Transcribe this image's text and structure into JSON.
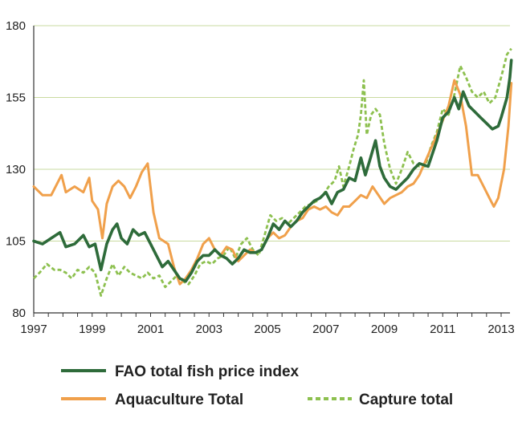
{
  "chart_data": {
    "type": "line",
    "title": "",
    "xlabel": "",
    "ylabel": "",
    "xlim": [
      1997,
      2013.4
    ],
    "ylim": [
      80,
      180
    ],
    "grid": "horizontal",
    "x_ticks": [
      1997,
      1999,
      2001,
      2003,
      2005,
      2007,
      2009,
      2011,
      2013
    ],
    "y_ticks": [
      80,
      105,
      130,
      155,
      180
    ],
    "legend_position": "bottom",
    "series": [
      {
        "name": "FAO total fish price index",
        "color": "#2e6b3a",
        "style": "solid",
        "points": [
          [
            1997.0,
            105
          ],
          [
            1997.3,
            104
          ],
          [
            1997.6,
            106
          ],
          [
            1997.9,
            108
          ],
          [
            1998.1,
            103
          ],
          [
            1998.4,
            104
          ],
          [
            1998.7,
            107
          ],
          [
            1998.9,
            103
          ],
          [
            1999.1,
            104
          ],
          [
            1999.3,
            95
          ],
          [
            1999.5,
            104
          ],
          [
            1999.7,
            109
          ],
          [
            1999.85,
            111
          ],
          [
            2000.0,
            106
          ],
          [
            2000.2,
            104
          ],
          [
            2000.4,
            109
          ],
          [
            2000.6,
            107
          ],
          [
            2000.8,
            108
          ],
          [
            2001.0,
            104
          ],
          [
            2001.2,
            100
          ],
          [
            2001.4,
            96
          ],
          [
            2001.6,
            98
          ],
          [
            2001.8,
            95
          ],
          [
            2002.0,
            92
          ],
          [
            2002.2,
            91
          ],
          [
            2002.4,
            94
          ],
          [
            2002.6,
            98
          ],
          [
            2002.8,
            100
          ],
          [
            2003.0,
            100
          ],
          [
            2003.2,
            102
          ],
          [
            2003.4,
            100
          ],
          [
            2003.6,
            99
          ],
          [
            2003.8,
            97
          ],
          [
            2004.0,
            99
          ],
          [
            2004.2,
            102
          ],
          [
            2004.4,
            101
          ],
          [
            2004.6,
            101
          ],
          [
            2004.8,
            102
          ],
          [
            2005.0,
            106
          ],
          [
            2005.2,
            111
          ],
          [
            2005.4,
            109
          ],
          [
            2005.6,
            112
          ],
          [
            2005.8,
            110
          ],
          [
            2006.0,
            112
          ],
          [
            2006.2,
            115
          ],
          [
            2006.4,
            117
          ],
          [
            2006.6,
            119
          ],
          [
            2006.8,
            120
          ],
          [
            2007.0,
            122
          ],
          [
            2007.2,
            118
          ],
          [
            2007.4,
            122
          ],
          [
            2007.6,
            123
          ],
          [
            2007.8,
            127
          ],
          [
            2008.0,
            126
          ],
          [
            2008.2,
            134
          ],
          [
            2008.35,
            128
          ],
          [
            2008.5,
            133
          ],
          [
            2008.7,
            140
          ],
          [
            2008.85,
            131
          ],
          [
            2009.0,
            127
          ],
          [
            2009.2,
            124
          ],
          [
            2009.4,
            123
          ],
          [
            2009.6,
            125
          ],
          [
            2009.8,
            127
          ],
          [
            2010.0,
            130
          ],
          [
            2010.2,
            132
          ],
          [
            2010.5,
            131
          ],
          [
            2010.8,
            140
          ],
          [
            2011.0,
            148
          ],
          [
            2011.2,
            150
          ],
          [
            2011.4,
            155
          ],
          [
            2011.55,
            151
          ],
          [
            2011.7,
            157
          ],
          [
            2011.9,
            152
          ],
          [
            2012.1,
            150
          ],
          [
            2012.3,
            148
          ],
          [
            2012.5,
            146
          ],
          [
            2012.7,
            144
          ],
          [
            2012.9,
            145
          ],
          [
            2013.0,
            148
          ],
          [
            2013.2,
            155
          ],
          [
            2013.3,
            162
          ],
          [
            2013.35,
            168
          ]
        ]
      },
      {
        "name": "Aquaculture Total",
        "color": "#f0a04b",
        "style": "solid",
        "points": [
          [
            1997.0,
            124
          ],
          [
            1997.3,
            121
          ],
          [
            1997.6,
            121
          ],
          [
            1997.8,
            125
          ],
          [
            1997.95,
            128
          ],
          [
            1998.1,
            122
          ],
          [
            1998.4,
            124
          ],
          [
            1998.7,
            122
          ],
          [
            1998.9,
            127
          ],
          [
            1999.0,
            119
          ],
          [
            1999.2,
            116
          ],
          [
            1999.35,
            106
          ],
          [
            1999.5,
            118
          ],
          [
            1999.7,
            124
          ],
          [
            1999.9,
            126
          ],
          [
            2000.1,
            124
          ],
          [
            2000.3,
            120
          ],
          [
            2000.5,
            124
          ],
          [
            2000.7,
            129
          ],
          [
            2000.9,
            132
          ],
          [
            2001.1,
            115
          ],
          [
            2001.3,
            106
          ],
          [
            2001.6,
            104
          ],
          [
            2001.8,
            96
          ],
          [
            2002.0,
            90
          ],
          [
            2002.2,
            92
          ],
          [
            2002.4,
            95
          ],
          [
            2002.6,
            99
          ],
          [
            2002.8,
            104
          ],
          [
            2003.0,
            106
          ],
          [
            2003.2,
            102
          ],
          [
            2003.4,
            100
          ],
          [
            2003.6,
            103
          ],
          [
            2003.8,
            102
          ],
          [
            2004.0,
            98
          ],
          [
            2004.2,
            100
          ],
          [
            2004.4,
            102
          ],
          [
            2004.6,
            101
          ],
          [
            2004.8,
            102
          ],
          [
            2005.0,
            106
          ],
          [
            2005.2,
            108
          ],
          [
            2005.4,
            106
          ],
          [
            2005.6,
            107
          ],
          [
            2005.8,
            110
          ],
          [
            2006.0,
            112
          ],
          [
            2006.2,
            113
          ],
          [
            2006.4,
            116
          ],
          [
            2006.6,
            117
          ],
          [
            2006.8,
            116
          ],
          [
            2007.0,
            117
          ],
          [
            2007.2,
            115
          ],
          [
            2007.4,
            114
          ],
          [
            2007.6,
            117
          ],
          [
            2007.8,
            117
          ],
          [
            2008.0,
            119
          ],
          [
            2008.2,
            121
          ],
          [
            2008.4,
            120
          ],
          [
            2008.6,
            124
          ],
          [
            2008.8,
            121
          ],
          [
            2009.0,
            118
          ],
          [
            2009.2,
            120
          ],
          [
            2009.4,
            121
          ],
          [
            2009.6,
            122
          ],
          [
            2009.8,
            124
          ],
          [
            2010.0,
            125
          ],
          [
            2010.2,
            128
          ],
          [
            2010.5,
            135
          ],
          [
            2010.8,
            142
          ],
          [
            2011.0,
            147
          ],
          [
            2011.2,
            152
          ],
          [
            2011.4,
            161
          ],
          [
            2011.6,
            156
          ],
          [
            2011.8,
            145
          ],
          [
            2012.0,
            128
          ],
          [
            2012.2,
            128
          ],
          [
            2012.4,
            124
          ],
          [
            2012.6,
            120
          ],
          [
            2012.75,
            117
          ],
          [
            2012.9,
            120
          ],
          [
            2013.1,
            130
          ],
          [
            2013.25,
            145
          ],
          [
            2013.35,
            160
          ]
        ]
      },
      {
        "name": "Capture total",
        "color": "#8dc04f",
        "style": "dashed",
        "points": [
          [
            1997.0,
            92
          ],
          [
            1997.2,
            94
          ],
          [
            1997.45,
            97
          ],
          [
            1997.7,
            95
          ],
          [
            1997.9,
            95
          ],
          [
            1998.1,
            94
          ],
          [
            1998.3,
            92
          ],
          [
            1998.5,
            95
          ],
          [
            1998.7,
            94
          ],
          [
            1998.9,
            96
          ],
          [
            1999.1,
            94
          ],
          [
            1999.3,
            86
          ],
          [
            1999.5,
            92
          ],
          [
            1999.7,
            97
          ],
          [
            1999.9,
            93
          ],
          [
            2000.1,
            96
          ],
          [
            2000.3,
            94
          ],
          [
            2000.5,
            93
          ],
          [
            2000.7,
            92
          ],
          [
            2000.9,
            94
          ],
          [
            2001.1,
            92
          ],
          [
            2001.3,
            93
          ],
          [
            2001.5,
            89
          ],
          [
            2001.7,
            91
          ],
          [
            2001.9,
            93
          ],
          [
            2002.1,
            91
          ],
          [
            2002.3,
            90
          ],
          [
            2002.5,
            93
          ],
          [
            2002.7,
            97
          ],
          [
            2002.9,
            98
          ],
          [
            2003.1,
            97
          ],
          [
            2003.3,
            99
          ],
          [
            2003.5,
            100
          ],
          [
            2003.7,
            103
          ],
          [
            2003.9,
            99
          ],
          [
            2004.1,
            104
          ],
          [
            2004.3,
            106
          ],
          [
            2004.5,
            102
          ],
          [
            2004.7,
            100
          ],
          [
            2004.9,
            107
          ],
          [
            2005.1,
            114
          ],
          [
            2005.3,
            112
          ],
          [
            2005.5,
            113
          ],
          [
            2005.7,
            111
          ],
          [
            2005.9,
            113
          ],
          [
            2006.1,
            115
          ],
          [
            2006.3,
            117
          ],
          [
            2006.5,
            118
          ],
          [
            2006.7,
            119
          ],
          [
            2006.9,
            121
          ],
          [
            2007.1,
            124
          ],
          [
            2007.3,
            126
          ],
          [
            2007.45,
            131
          ],
          [
            2007.6,
            124
          ],
          [
            2007.8,
            131
          ],
          [
            2007.95,
            137
          ],
          [
            2008.1,
            142
          ],
          [
            2008.2,
            149
          ],
          [
            2008.3,
            161
          ],
          [
            2008.4,
            142
          ],
          [
            2008.55,
            149
          ],
          [
            2008.7,
            151
          ],
          [
            2008.85,
            149
          ],
          [
            2009.0,
            139
          ],
          [
            2009.2,
            130
          ],
          [
            2009.4,
            125
          ],
          [
            2009.6,
            130
          ],
          [
            2009.8,
            136
          ],
          [
            2010.0,
            132
          ],
          [
            2010.2,
            131
          ],
          [
            2010.4,
            131
          ],
          [
            2010.6,
            138
          ],
          [
            2010.8,
            143
          ],
          [
            2011.0,
            151
          ],
          [
            2011.2,
            149
          ],
          [
            2011.4,
            156
          ],
          [
            2011.6,
            166
          ],
          [
            2011.8,
            162
          ],
          [
            2012.0,
            157
          ],
          [
            2012.2,
            155
          ],
          [
            2012.4,
            157
          ],
          [
            2012.6,
            153
          ],
          [
            2012.8,
            155
          ],
          [
            2013.0,
            162
          ],
          [
            2013.2,
            170
          ],
          [
            2013.35,
            172
          ]
        ]
      }
    ]
  }
}
